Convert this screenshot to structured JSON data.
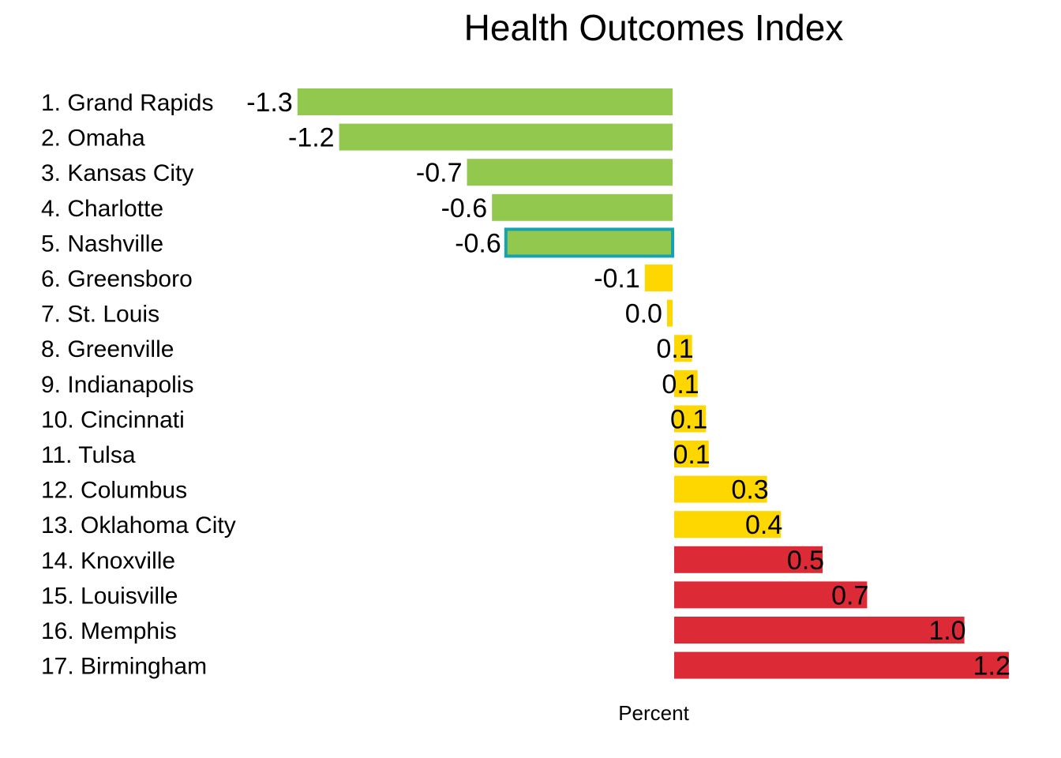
{
  "chart_data": {
    "type": "bar",
    "orientation": "horizontal",
    "title": "Health Outcomes Index",
    "xlabel": "Percent",
    "ylabel": "",
    "categories": [
      "1. Grand Rapids",
      "2. Omaha",
      "3. Kansas City",
      "4. Charlotte",
      "5. Nashville",
      "6. Greensboro",
      "7. St. Louis",
      "8. Greenville",
      "9. Indianapolis",
      "10. Cincinnati",
      "11. Tulsa",
      "12. Columbus",
      "13. Oklahoma City",
      "14. Knoxville",
      "15. Louisville",
      "16. Memphis",
      "17. Birmingham"
    ],
    "values": [
      -1.35,
      -1.2,
      -0.74,
      -0.65,
      -0.6,
      -0.1,
      -0.02,
      0.07,
      0.09,
      0.12,
      0.13,
      0.34,
      0.39,
      0.54,
      0.7,
      1.05,
      1.21
    ],
    "value_labels": [
      "-1.3",
      "-1.2",
      "-0.7",
      "-0.6",
      "-0.6",
      "-0.1",
      "0.0",
      "0.1",
      "0.1",
      "0.1",
      "0.1",
      "0.3",
      "0.4",
      "0.5",
      "0.7",
      "1.0",
      "1.2"
    ],
    "bar_colors": [
      "#92c84e",
      "#92c84e",
      "#92c84e",
      "#92c84e",
      "#92c84e",
      "#ffd700",
      "#ffd700",
      "#ffd700",
      "#ffd700",
      "#ffd700",
      "#ffd700",
      "#ffd700",
      "#ffd700",
      "#dc2a37",
      "#dc2a37",
      "#dc2a37",
      "#dc2a37"
    ],
    "highlight_index": 4,
    "highlight_label_index": 14,
    "highlight_color": "#17a2b0",
    "xlim": [
      -1.35,
      1.22
    ],
    "grid": false,
    "legend": "none"
  }
}
